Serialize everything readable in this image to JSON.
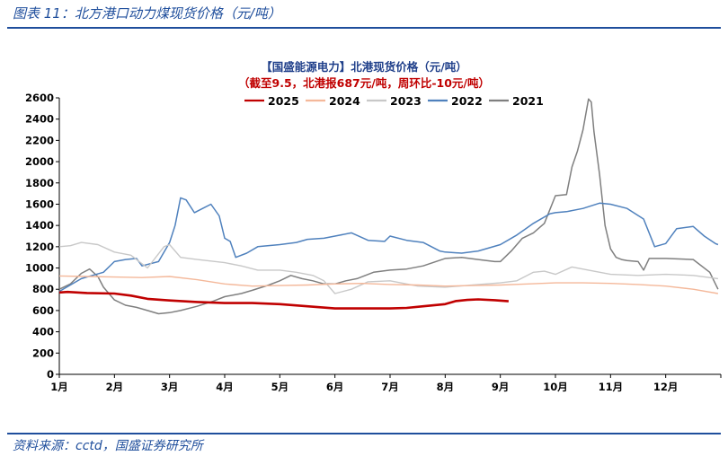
{
  "figure": {
    "title": "图表 11：北方港口动力煤现货价格（元/吨）",
    "source": "资料来源：cctd，国盛证券研究所"
  },
  "chart_data": {
    "type": "line",
    "title": "【国盛能源电力】北港现货价格（元/吨）",
    "subtitle": "（截至9.5，北港报687元/吨，周环比-10元/吨）",
    "xlabel": "",
    "ylabel": "",
    "x_ticks": [
      "1月",
      "2月",
      "3月",
      "4月",
      "5月",
      "6月",
      "7月",
      "8月",
      "9月",
      "10月",
      "11月",
      "12月"
    ],
    "ylim": [
      0,
      2600
    ],
    "y_ticks": [
      0,
      200,
      400,
      600,
      800,
      1000,
      1200,
      1400,
      1600,
      1800,
      2000,
      2200,
      2400,
      2600
    ],
    "grid": false,
    "legend_position": "top",
    "series": [
      {
        "name": "2025",
        "color": "#c00000",
        "width": 2.6,
        "x": [
          1.0,
          1.15,
          1.5,
          2.0,
          2.3,
          2.6,
          3.0,
          3.5,
          4.0,
          4.5,
          5.0,
          5.5,
          6.0,
          6.5,
          7.0,
          7.3,
          7.6,
          8.0,
          8.2,
          8.4,
          8.6,
          8.9,
          9.15
        ],
        "y": [
          770,
          775,
          765,
          760,
          740,
          710,
          695,
          680,
          670,
          670,
          660,
          640,
          620,
          620,
          620,
          625,
          640,
          660,
          690,
          700,
          705,
          697,
          687
        ]
      },
      {
        "name": "2024",
        "color": "#f4b89a",
        "width": 1.4,
        "x": [
          1.0,
          1.5,
          2.0,
          2.5,
          3.0,
          3.5,
          4.0,
          4.5,
          5.0,
          5.5,
          6.0,
          6.5,
          7.0,
          7.5,
          8.0,
          8.5,
          9.0,
          9.5,
          10.0,
          10.5,
          11.0,
          11.5,
          12.0,
          12.5,
          12.95
        ],
        "y": [
          925,
          920,
          915,
          910,
          920,
          890,
          850,
          830,
          835,
          840,
          850,
          855,
          845,
          840,
          830,
          835,
          840,
          850,
          860,
          860,
          855,
          845,
          830,
          800,
          760
        ]
      },
      {
        "name": "2023",
        "color": "#c8c8c8",
        "width": 1.4,
        "x": [
          1.0,
          1.2,
          1.4,
          1.7,
          2.0,
          2.3,
          2.6,
          2.9,
          3.0,
          3.2,
          3.5,
          4.0,
          4.3,
          4.6,
          5.0,
          5.3,
          5.6,
          5.8,
          6.0,
          6.3,
          6.6,
          7.0,
          7.5,
          8.0,
          8.5,
          9.0,
          9.3,
          9.6,
          9.8,
          10.0,
          10.3,
          10.6,
          11.0,
          11.5,
          12.0,
          12.5,
          12.95
        ],
        "y": [
          1200,
          1210,
          1240,
          1220,
          1150,
          1120,
          1000,
          1200,
          1220,
          1100,
          1080,
          1050,
          1020,
          980,
          980,
          960,
          930,
          880,
          760,
          800,
          870,
          880,
          830,
          820,
          840,
          860,
          880,
          960,
          970,
          940,
          1010,
          980,
          940,
          930,
          940,
          930,
          900
        ]
      },
      {
        "name": "2022",
        "color": "#4f81bd",
        "width": 1.5,
        "x": [
          1.0,
          1.2,
          1.4,
          1.6,
          1.8,
          2.0,
          2.2,
          2.4,
          2.5,
          2.8,
          3.0,
          3.1,
          3.2,
          3.3,
          3.45,
          3.6,
          3.75,
          3.9,
          4.0,
          4.1,
          4.2,
          4.4,
          4.6,
          5.0,
          5.3,
          5.5,
          5.8,
          6.0,
          6.3,
          6.6,
          6.9,
          7.0,
          7.3,
          7.6,
          7.9,
          8.0,
          8.3,
          8.6,
          9.0,
          9.3,
          9.6,
          9.9,
          10.0,
          10.2,
          10.5,
          10.8,
          11.0,
          11.3,
          11.6,
          11.8,
          12.0,
          12.2,
          12.5,
          12.7,
          12.9,
          12.95
        ],
        "y": [
          780,
          840,
          900,
          930,
          960,
          1060,
          1080,
          1090,
          1020,
          1060,
          1240,
          1400,
          1660,
          1640,
          1520,
          1560,
          1600,
          1490,
          1280,
          1250,
          1100,
          1140,
          1200,
          1220,
          1240,
          1270,
          1280,
          1300,
          1330,
          1260,
          1250,
          1300,
          1260,
          1240,
          1160,
          1150,
          1140,
          1160,
          1220,
          1310,
          1420,
          1510,
          1520,
          1530,
          1560,
          1610,
          1600,
          1560,
          1460,
          1200,
          1230,
          1370,
          1390,
          1300,
          1230,
          1220
        ]
      },
      {
        "name": "2021",
        "color": "#7f7f7f",
        "width": 1.5,
        "x": [
          1.0,
          1.2,
          1.4,
          1.55,
          1.7,
          1.8,
          2.0,
          2.2,
          2.4,
          2.6,
          2.8,
          3.0,
          3.2,
          3.5,
          3.8,
          4.0,
          4.3,
          4.5,
          4.8,
          5.0,
          5.2,
          5.4,
          5.6,
          5.8,
          6.0,
          6.2,
          6.4,
          6.7,
          7.0,
          7.3,
          7.6,
          8.0,
          8.3,
          8.6,
          8.9,
          9.0,
          9.2,
          9.4,
          9.6,
          9.8,
          10.0,
          10.2,
          10.3,
          10.4,
          10.5,
          10.6,
          10.65,
          10.7,
          10.8,
          10.9,
          11.0,
          11.1,
          11.2,
          11.3,
          11.5,
          11.6,
          11.7,
          12.0,
          12.5,
          12.8,
          12.95
        ],
        "y": [
          800,
          850,
          950,
          990,
          920,
          820,
          700,
          650,
          630,
          600,
          570,
          580,
          600,
          640,
          690,
          730,
          760,
          790,
          840,
          880,
          930,
          900,
          880,
          850,
          850,
          880,
          900,
          960,
          980,
          990,
          1020,
          1090,
          1100,
          1080,
          1060,
          1060,
          1160,
          1280,
          1330,
          1420,
          1680,
          1690,
          1950,
          2100,
          2300,
          2590,
          2560,
          2280,
          1880,
          1400,
          1180,
          1100,
          1080,
          1070,
          1060,
          980,
          1090,
          1090,
          1080,
          960,
          800
        ]
      }
    ]
  }
}
